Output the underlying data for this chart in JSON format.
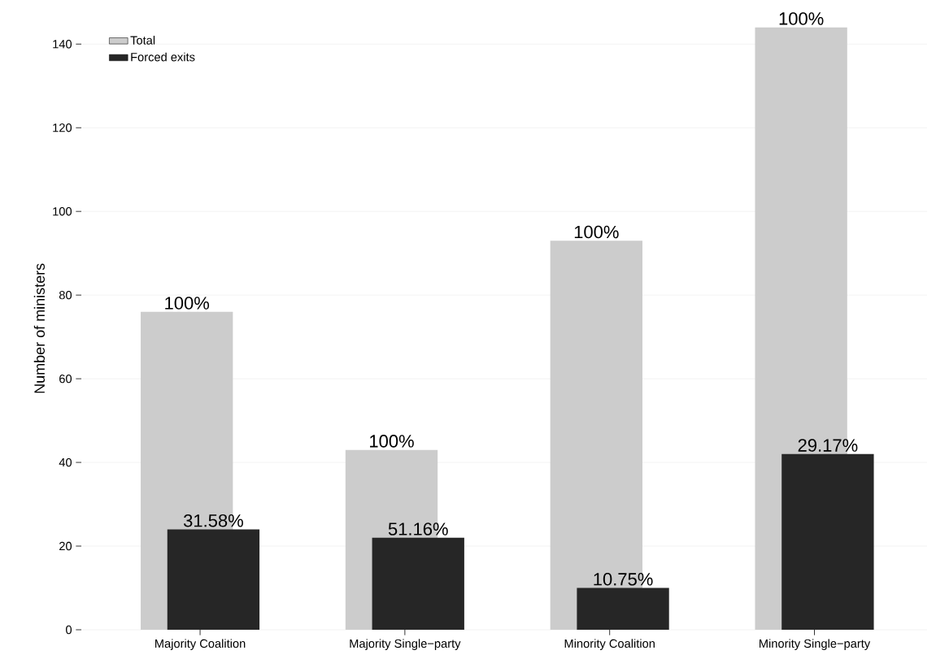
{
  "chart_data": {
    "type": "bar",
    "ylabel": "Number of ministers",
    "categories": [
      "Majority Coalition",
      "Majority Single−party",
      "Minority Coalition",
      "Minority Single−party"
    ],
    "series": [
      {
        "name": "Total",
        "color": "#cccccc",
        "values": [
          76,
          43,
          93,
          144
        ]
      },
      {
        "name": "Forced exits",
        "color": "#262626",
        "values": [
          24,
          22,
          10,
          42
        ]
      }
    ],
    "annotations": [
      {
        "text": "100%",
        "x": "Majority Coalition",
        "y": 76
      },
      {
        "text": "100%",
        "x": "Majority Single−party",
        "y": 43
      },
      {
        "text": "100%",
        "x": "Minority Coalition",
        "y": 93
      },
      {
        "text": "100%",
        "x": "Minority Single−party",
        "y": 144
      },
      {
        "text": "31.58%",
        "x": "Majority Coalition",
        "y": 24
      },
      {
        "text": "51.16%",
        "x": "Majority Single−party",
        "y": 22
      },
      {
        "text": "10.75%",
        "x": "Minority Coalition",
        "y": 10
      },
      {
        "text": "29.17%",
        "x": "Minority Single−party",
        "y": 42
      }
    ],
    "ylim": [
      0,
      144
    ],
    "yticks": [
      0,
      20,
      40,
      60,
      80,
      100,
      120,
      140
    ],
    "grid": "y",
    "legend": "top left"
  }
}
